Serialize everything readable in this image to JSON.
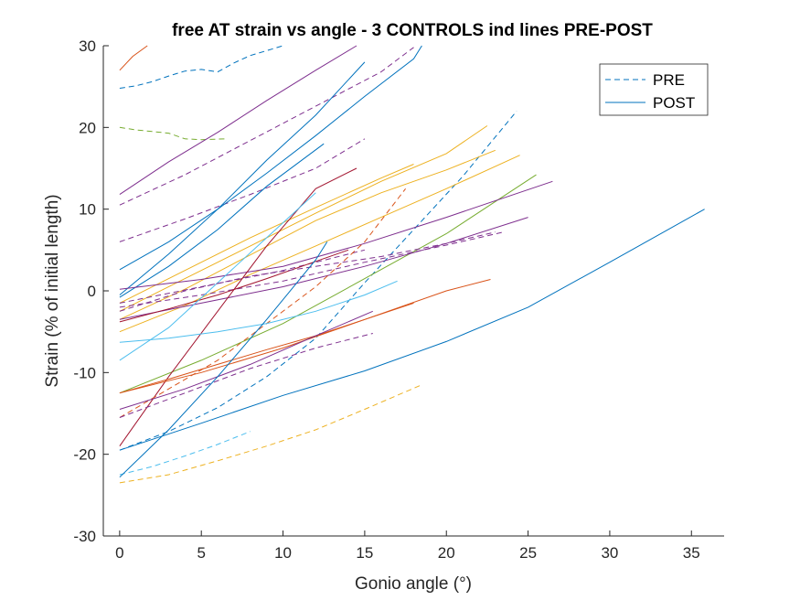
{
  "chart_data": {
    "type": "line",
    "title": "free AT strain vs angle - 3 CONTROLS ind lines PRE-POST",
    "xlabel": "Gonio angle (°)",
    "ylabel": "Strain (% of initial length)",
    "xlim": [
      -1,
      37
    ],
    "ylim": [
      -30,
      30
    ],
    "xticks": [
      0,
      5,
      10,
      15,
      20,
      25,
      30,
      35
    ],
    "yticks": [
      -30,
      -20,
      -10,
      0,
      10,
      20,
      30
    ],
    "grid": false,
    "legend": {
      "position": "top-right",
      "entries": [
        {
          "label": "PRE",
          "style": "dashed",
          "color": "#0072BD"
        },
        {
          "label": "POST",
          "style": "solid",
          "color": "#0072BD"
        }
      ]
    },
    "series": [
      {
        "style": "dashed",
        "color": "#0072BD",
        "x": [
          0,
          1,
          2,
          3,
          4,
          5,
          6,
          7,
          8,
          9,
          10
        ],
        "y": [
          24.8,
          25.1,
          25.6,
          26.3,
          26.9,
          27.1,
          26.8,
          27.9,
          28.8,
          29.4,
          30
        ]
      },
      {
        "style": "dashed",
        "color": "#77AC30",
        "x": [
          0,
          1,
          2,
          3,
          4,
          5,
          6.5
        ],
        "y": [
          20,
          19.7,
          19.5,
          19.3,
          18.6,
          18.5,
          18.6
        ]
      },
      {
        "style": "solid",
        "color": "#D95319",
        "x": [
          0,
          0.8,
          1.7
        ],
        "y": [
          27,
          28.7,
          30
        ]
      },
      {
        "style": "solid",
        "color": "#7E2F8E",
        "x": [
          0,
          3,
          6,
          9,
          12,
          14.5
        ],
        "y": [
          11.8,
          15.8,
          19.4,
          23.3,
          27.0,
          30
        ]
      },
      {
        "style": "dashed",
        "color": "#7E2F8E",
        "x": [
          0,
          4,
          8,
          12,
          16,
          18
        ],
        "y": [
          10.5,
          14.2,
          18.4,
          22.6,
          26.8,
          29.8
        ]
      },
      {
        "style": "dashed",
        "color": "#7E2F8E",
        "x": [
          0,
          4,
          8,
          12,
          15
        ],
        "y": [
          6.0,
          8.8,
          11.8,
          15.0,
          18.6
        ]
      },
      {
        "style": "solid",
        "color": "#0072BD",
        "x": [
          0,
          3,
          6,
          9,
          12,
          15,
          18,
          18.5
        ],
        "y": [
          2.6,
          6.0,
          10.0,
          14.4,
          19.0,
          23.8,
          28.4,
          30
        ]
      },
      {
        "style": "solid",
        "color": "#0072BD",
        "x": [
          0,
          3,
          6,
          9,
          12,
          15
        ],
        "y": [
          -0.5,
          4.5,
          10.0,
          16.0,
          21.5,
          28.0
        ]
      },
      {
        "style": "solid",
        "color": "#0072BD",
        "x": [
          0,
          3,
          6,
          9,
          12.5
        ],
        "y": [
          -0.8,
          3.0,
          7.5,
          12.8,
          18.0
        ]
      },
      {
        "style": "dashed",
        "color": "#0072BD",
        "x": [
          0,
          3,
          6,
          9,
          12,
          15,
          18,
          21,
          24.3
        ],
        "y": [
          -19.5,
          -17.2,
          -14.3,
          -10.5,
          -5.8,
          1.0,
          7.5,
          14.0,
          22.0
        ]
      },
      {
        "style": "solid",
        "color": "#EDB120",
        "x": [
          0,
          4,
          8,
          12,
          16,
          20,
          22.5
        ],
        "y": [
          -2.5,
          1.5,
          5.5,
          9.5,
          13.4,
          16.8,
          20.2
        ]
      },
      {
        "style": "solid",
        "color": "#EDB120",
        "x": [
          0,
          4,
          8,
          12,
          16,
          20,
          23
        ],
        "y": [
          -3.5,
          0.2,
          4.4,
          8.6,
          12.0,
          14.8,
          17.2
        ]
      },
      {
        "style": "solid",
        "color": "#EDB120",
        "x": [
          0,
          4,
          8,
          12,
          16,
          20,
          24.5
        ],
        "y": [
          -5.0,
          -1.8,
          2.0,
          5.5,
          9.0,
          12.5,
          16.6
        ]
      },
      {
        "style": "solid",
        "color": "#EDB120",
        "x": [
          0,
          4,
          8,
          12,
          16,
          18
        ],
        "y": [
          -1.5,
          2.5,
          6.5,
          10.2,
          13.8,
          15.5
        ]
      },
      {
        "style": "solid",
        "color": "#77AC30",
        "x": [
          0,
          5,
          10,
          15,
          20,
          25.5
        ],
        "y": [
          -12.5,
          -8.5,
          -4.0,
          1.5,
          7.0,
          14.2
        ]
      },
      {
        "style": "solid",
        "color": "#7E2F8E",
        "x": [
          0,
          5,
          10,
          15,
          20,
          26.5
        ],
        "y": [
          0.2,
          1.4,
          3.0,
          5.8,
          9.0,
          13.4
        ]
      },
      {
        "style": "solid",
        "color": "#7E2F8E",
        "x": [
          0,
          5,
          10,
          15,
          20,
          25
        ],
        "y": [
          -3.5,
          -1.5,
          0.5,
          3.0,
          5.8,
          9.0
        ]
      },
      {
        "style": "dashed",
        "color": "#7E2F8E",
        "x": [
          0,
          5,
          10,
          15,
          20,
          23.5
        ],
        "y": [
          -2.0,
          -0.5,
          1.2,
          3.5,
          5.6,
          7.2
        ]
      },
      {
        "style": "dashed",
        "color": "#7E2F8E",
        "x": [
          0,
          5,
          10,
          15
        ],
        "y": [
          -1.5,
          0.5,
          2.5,
          5.0
        ]
      },
      {
        "style": "solid",
        "color": "#A2142F",
        "x": [
          0,
          3,
          6,
          9,
          12,
          14
        ],
        "y": [
          -3.8,
          -2.2,
          -0.5,
          1.5,
          3.6,
          5.0
        ]
      },
      {
        "style": "solid",
        "color": "#A2142F",
        "x": [
          0,
          3,
          6,
          9,
          12,
          14.5
        ],
        "y": [
          -19.0,
          -10.5,
          -2.5,
          5.5,
          12.5,
          15.0
        ]
      },
      {
        "style": "dashed",
        "color": "#D95319",
        "x": [
          0,
          3,
          6,
          9,
          12,
          15,
          17.5
        ],
        "y": [
          -15.5,
          -12.0,
          -8.5,
          -4.0,
          0.5,
          6.0,
          12.5
        ]
      },
      {
        "style": "solid",
        "color": "#D95319",
        "x": [
          0,
          3,
          6,
          9,
          12,
          15,
          18
        ],
        "y": [
          -12.5,
          -10.8,
          -9.0,
          -7.2,
          -5.5,
          -3.5,
          -1.5
        ]
      },
      {
        "style": "solid",
        "color": "#D95319",
        "x": [
          0,
          5,
          10,
          15,
          20,
          22.7
        ],
        "y": [
          -12.5,
          -10.0,
          -7.0,
          -3.5,
          0.0,
          1.4
        ]
      },
      {
        "style": "solid",
        "color": "#4DBEEE",
        "x": [
          0,
          3,
          6,
          9,
          12,
          15,
          17
        ],
        "y": [
          -6.3,
          -5.8,
          -5.0,
          -4.0,
          -2.5,
          -0.5,
          1.2
        ]
      },
      {
        "style": "solid",
        "color": "#4DBEEE",
        "x": [
          0,
          3,
          6,
          9,
          12
        ],
        "y": [
          -8.5,
          -4.5,
          1.0,
          6.5,
          12.0
        ]
      },
      {
        "style": "dashed",
        "color": "#4DBEEE",
        "x": [
          0,
          2,
          4,
          6,
          8
        ],
        "y": [
          -22.5,
          -21.5,
          -20.2,
          -18.8,
          -17.2
        ]
      },
      {
        "style": "dashed",
        "color": "#EDB120",
        "x": [
          0,
          3,
          6,
          9,
          12,
          15,
          18.5
        ],
        "y": [
          -23.5,
          -22.5,
          -20.8,
          -19.0,
          -17.0,
          -14.5,
          -11.5
        ]
      },
      {
        "style": "solid",
        "color": "#0072BD",
        "x": [
          0,
          5,
          10,
          15,
          20,
          25,
          30,
          35.8
        ],
        "y": [
          -19.5,
          -16.2,
          -12.8,
          -9.8,
          -6.2,
          -2.0,
          3.5,
          10.0
        ]
      },
      {
        "style": "solid",
        "color": "#7E2F8E",
        "x": [
          0,
          4,
          8,
          12,
          15.5
        ],
        "y": [
          -14.5,
          -12.0,
          -9.0,
          -5.5,
          -2.5
        ]
      },
      {
        "style": "dashed",
        "color": "#7E2F8E",
        "x": [
          0,
          4,
          8,
          12,
          15.5
        ],
        "y": [
          -15.5,
          -12.5,
          -9.5,
          -7.0,
          -5.2
        ]
      },
      {
        "style": "dashed",
        "color": "#7E2F8E",
        "x": [
          0,
          4,
          8,
          12,
          16,
          20,
          23
        ],
        "y": [
          -2.5,
          0.0,
          1.8,
          3.0,
          4.2,
          5.8,
          7.2
        ]
      },
      {
        "style": "solid",
        "color": "#0072BD",
        "x": [
          0,
          3,
          6,
          9,
          12,
          12.7
        ],
        "y": [
          -22.8,
          -17.0,
          -10.5,
          -3.5,
          3.8,
          6.0
        ]
      }
    ]
  }
}
